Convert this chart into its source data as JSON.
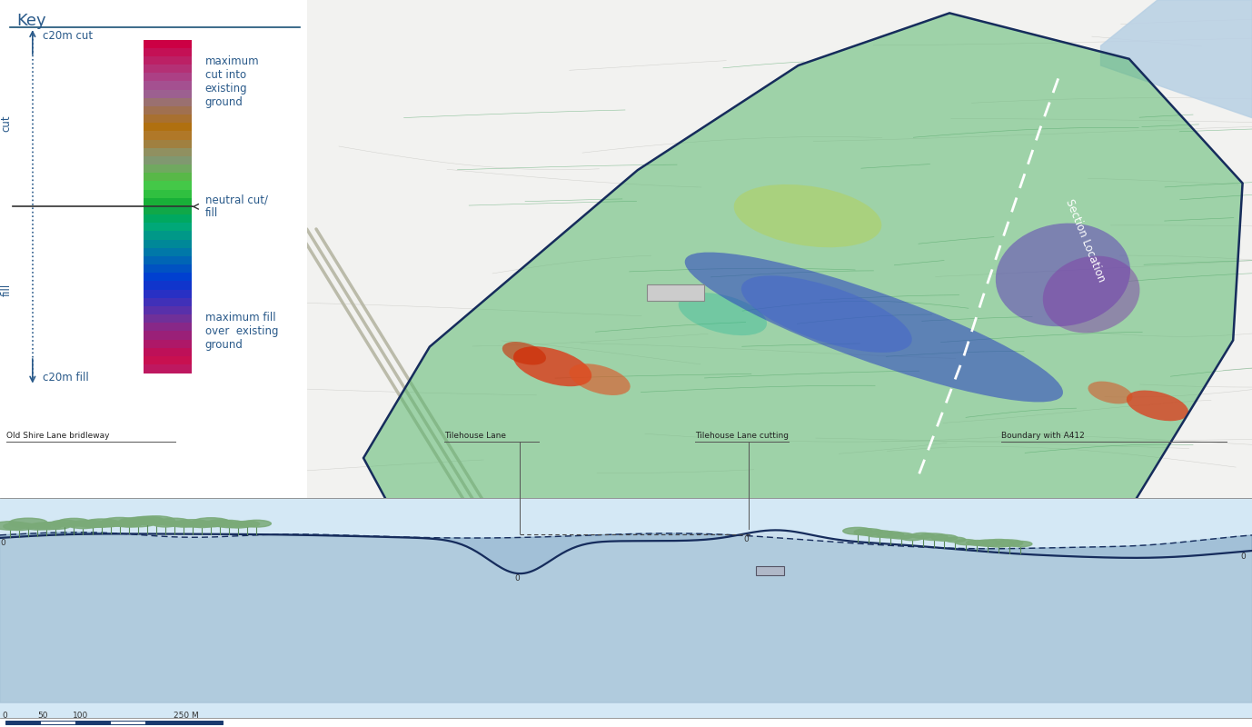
{
  "background_color": "#ffffff",
  "key_title": "Key",
  "key_line_color": "#1a5276",
  "cut_label": "c20m cut",
  "fill_label": "c20m fill",
  "neutral_label": "neutral cut/\nfill",
  "max_cut_label": "maximum\ncut into\nexisting\nground",
  "max_fill_label": "maximum fill\nover  existing\nground",
  "cut_colors": [
    "#cc0044",
    "#c41055",
    "#bc2065",
    "#b43075",
    "#ac4085",
    "#a45090",
    "#9c6090",
    "#9a7070",
    "#a07050",
    "#a87030",
    "#b07010",
    "#b07828",
    "#a08040",
    "#909060",
    "#809870",
    "#70a860",
    "#58b848",
    "#44c848",
    "#30c040",
    "#18b038"
  ],
  "fill_colors": [
    "#10a848",
    "#00a860",
    "#00a878",
    "#009888",
    "#008898",
    "#0078a8",
    "#0065b5",
    "#0052c2",
    "#0040d0",
    "#1035cc",
    "#2830c4",
    "#4030b8",
    "#5830aa",
    "#703099",
    "#882888",
    "#9a2078",
    "#ae1868",
    "#be1058",
    "#c81050",
    "#be1860"
  ],
  "section_labels": [
    "Old Shire Lane bridleway",
    "Tilehouse Lane",
    "Tilehouse Lane cutting",
    "Boundary with A412"
  ],
  "label_color": "#2a5a8a"
}
